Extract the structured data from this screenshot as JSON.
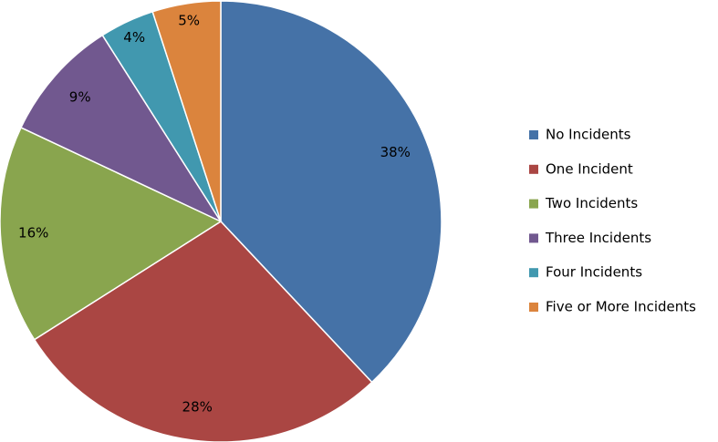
{
  "chart_data": {
    "type": "pie",
    "categories": [
      "No Incidents",
      "One Incident",
      "Two Incidents",
      "Three Incidents",
      "Four Incidents",
      "Five or More Incidents"
    ],
    "values": [
      38,
      28,
      16,
      9,
      4,
      5
    ],
    "value_labels": [
      "38%",
      "28%",
      "16%",
      "9%",
      "4%",
      "5%"
    ],
    "colors": [
      "#4572a7",
      "#aa4643",
      "#89a54e",
      "#71588f",
      "#4198af",
      "#db843d"
    ],
    "legend": "right"
  }
}
